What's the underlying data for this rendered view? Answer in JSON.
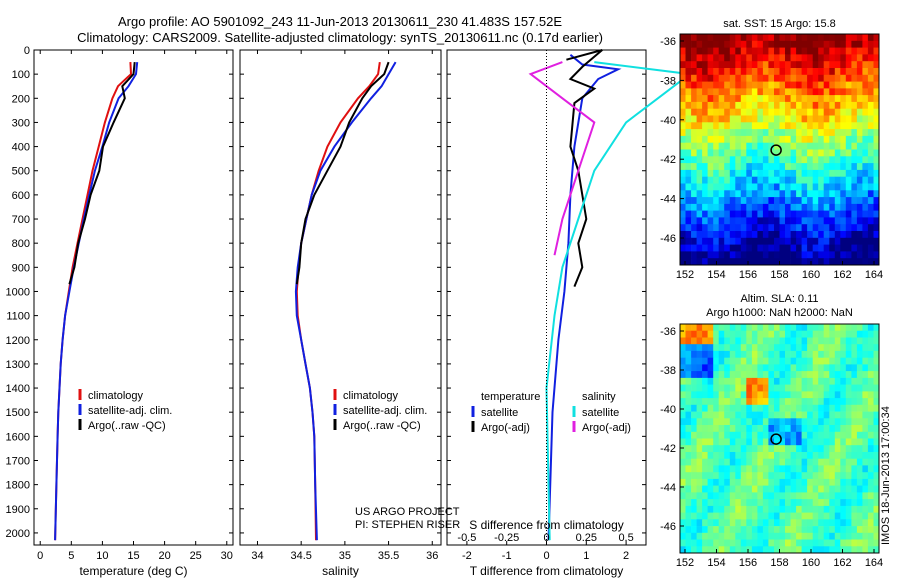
{
  "header": {
    "line1": "Argo profile: AO 5901092_243 11-Jun-2013 20130611_230 41.483S 157.52E",
    "line2": "Climatology: CARS2009. Satellite-adjusted climatology: synTS_20130611.nc (0.17d earlier)"
  },
  "colors": {
    "climatology": "#e01010",
    "satellite": "#1020e0",
    "argo": "#000000",
    "s_satellite": "#10e0e0",
    "s_argo": "#e020e0"
  },
  "chart_data": [
    {
      "type": "line",
      "name": "temperature",
      "xlabel": "temperature (deg C)",
      "ylabel": "",
      "xlim": [
        -1,
        31
      ],
      "ylim": [
        0,
        2050
      ],
      "xticks": [
        0,
        5,
        10,
        15,
        20,
        25,
        30
      ],
      "yticks": [
        0,
        100,
        200,
        300,
        400,
        500,
        600,
        700,
        800,
        900,
        1000,
        1100,
        1200,
        1300,
        1400,
        1500,
        1600,
        1700,
        1800,
        1900,
        2000
      ],
      "legend": [
        "climatology",
        "satellite-adj. clim.",
        "Argo(..raw -QC)"
      ],
      "series": [
        {
          "name": "climatology",
          "color": "#e01010",
          "points": [
            [
              14.5,
              50
            ],
            [
              14.6,
              100
            ],
            [
              12.5,
              150
            ],
            [
              11.6,
              200
            ],
            [
              10.4,
              300
            ],
            [
              9.4,
              400
            ],
            [
              8.4,
              500
            ],
            [
              7.6,
              600
            ],
            [
              6.8,
              700
            ],
            [
              6,
              800
            ],
            [
              5.2,
              900
            ],
            [
              4.6,
              1000
            ],
            [
              4,
              1100
            ],
            [
              3.6,
              1200
            ],
            [
              3.3,
              1300
            ],
            [
              3.1,
              1400
            ],
            [
              2.9,
              1500
            ],
            [
              2.8,
              1600
            ],
            [
              2.6,
              1800
            ],
            [
              2.4,
              2030
            ]
          ]
        },
        {
          "name": "satellite-adj. clim.",
          "color": "#1020e0",
          "points": [
            [
              15.6,
              50
            ],
            [
              15.4,
              100
            ],
            [
              14.2,
              150
            ],
            [
              12.6,
              200
            ],
            [
              11.1,
              300
            ],
            [
              10,
              400
            ],
            [
              8.8,
              500
            ],
            [
              7.9,
              600
            ],
            [
              7,
              700
            ],
            [
              6.2,
              800
            ],
            [
              5.4,
              900
            ],
            [
              4.7,
              1000
            ],
            [
              4,
              1100
            ],
            [
              3.6,
              1200
            ],
            [
              3.3,
              1300
            ],
            [
              3.1,
              1400
            ],
            [
              2.9,
              1500
            ],
            [
              2.8,
              1600
            ],
            [
              2.6,
              1800
            ],
            [
              2.4,
              2030
            ]
          ]
        },
        {
          "name": "Argo(..raw -QC)",
          "color": "#000000",
          "points": [
            [
              15.2,
              50
            ],
            [
              15,
              100
            ],
            [
              13.2,
              150
            ],
            [
              13.6,
              200
            ],
            [
              11.8,
              300
            ],
            [
              10.1,
              400
            ],
            [
              9.5,
              500
            ],
            [
              8.1,
              600
            ],
            [
              7.2,
              700
            ],
            [
              6.1,
              800
            ],
            [
              5.5,
              900
            ],
            [
              4.7,
              970
            ]
          ]
        }
      ]
    },
    {
      "type": "line",
      "name": "salinity",
      "xlabel": "salinity",
      "ylabel": "",
      "xlim": [
        33.8,
        36.1
      ],
      "ylim": [
        0,
        2050
      ],
      "xticks": [
        34,
        34.5,
        35,
        35.5,
        36
      ],
      "legend": [
        "climatology",
        "satellite-adj. clim.",
        "Argo(..raw -QC)"
      ],
      "series": [
        {
          "name": "climatology",
          "color": "#e01010",
          "points": [
            [
              35.4,
              50
            ],
            [
              35.38,
              100
            ],
            [
              35.28,
              150
            ],
            [
              35.15,
              200
            ],
            [
              34.95,
              300
            ],
            [
              34.8,
              400
            ],
            [
              34.7,
              500
            ],
            [
              34.62,
              600
            ],
            [
              34.56,
              700
            ],
            [
              34.5,
              800
            ],
            [
              34.47,
              900
            ],
            [
              34.45,
              1000
            ],
            [
              34.46,
              1100
            ],
            [
              34.5,
              1200
            ],
            [
              34.55,
              1300
            ],
            [
              34.6,
              1400
            ],
            [
              34.63,
              1500
            ],
            [
              34.65,
              1600
            ],
            [
              34.66,
              1800
            ],
            [
              34.67,
              2030
            ]
          ]
        },
        {
          "name": "satellite-adj. clim.",
          "color": "#1020e0",
          "points": [
            [
              35.58,
              50
            ],
            [
              35.5,
              100
            ],
            [
              35.42,
              150
            ],
            [
              35.3,
              200
            ],
            [
              35.08,
              300
            ],
            [
              34.88,
              400
            ],
            [
              34.72,
              500
            ],
            [
              34.62,
              600
            ],
            [
              34.56,
              700
            ],
            [
              34.5,
              800
            ],
            [
              34.46,
              900
            ],
            [
              34.44,
              1000
            ],
            [
              34.45,
              1100
            ],
            [
              34.5,
              1200
            ],
            [
              34.55,
              1300
            ],
            [
              34.6,
              1400
            ],
            [
              34.63,
              1500
            ],
            [
              34.65,
              1600
            ],
            [
              34.66,
              1800
            ],
            [
              34.68,
              2030
            ]
          ]
        },
        {
          "name": "Argo(..raw -QC)",
          "color": "#000000",
          "points": [
            [
              35.5,
              50
            ],
            [
              35.45,
              100
            ],
            [
              35.3,
              150
            ],
            [
              35.2,
              200
            ],
            [
              35.05,
              300
            ],
            [
              34.95,
              400
            ],
            [
              34.8,
              500
            ],
            [
              34.65,
              600
            ],
            [
              34.55,
              700
            ],
            [
              34.5,
              800
            ],
            [
              34.48,
              900
            ],
            [
              34.45,
              970
            ]
          ]
        }
      ]
    },
    {
      "type": "line",
      "name": "difference",
      "xlabel": "T difference from climatology",
      "xlabel2": "S difference from climatology",
      "xlim": [
        -2.5,
        2.5
      ],
      "ylim": [
        0,
        2050
      ],
      "xticks": [
        "-2",
        "-1",
        "0",
        "1",
        "2"
      ],
      "xticks_s": [
        "-0.5",
        "-0.25",
        "0",
        "0.25",
        "0.5"
      ],
      "legend_title_t": "temperature",
      "legend_title_s": "salinity",
      "legend": [
        "satellite",
        "Argo(-adj)",
        "satellite",
        "Argo(-adj)"
      ],
      "series": [
        {
          "name": "temperature satellite",
          "color": "#1020e0",
          "points": [
            [
              0.6,
              20
            ],
            [
              0.9,
              60
            ],
            [
              1.8,
              80
            ],
            [
              1.3,
              120
            ],
            [
              0.9,
              200
            ],
            [
              0.7,
              400
            ],
            [
              0.6,
              600
            ],
            [
              0.55,
              800
            ],
            [
              0.45,
              1000
            ],
            [
              0.3,
              1200
            ],
            [
              0.15,
              1500
            ],
            [
              0.05,
              2030
            ]
          ]
        },
        {
          "name": "temperature Argo(-adj)",
          "color": "#000000",
          "points": [
            [
              0.5,
              40
            ],
            [
              1.4,
              0
            ],
            [
              0.9,
              70
            ],
            [
              0.6,
              120
            ],
            [
              1.2,
              160
            ],
            [
              0.7,
              220
            ],
            [
              0.6,
              400
            ],
            [
              0.8,
              500
            ],
            [
              1.0,
              700
            ],
            [
              0.8,
              800
            ],
            [
              0.9,
              900
            ],
            [
              0.7,
              980
            ]
          ]
        },
        {
          "name": "salinity satellite",
          "color": "#10e0e0",
          "points": [
            [
              0.3,
              50
            ],
            [
              0.9,
              100
            ],
            [
              0.7,
              200
            ],
            [
              0.5,
              300
            ],
            [
              0.3,
              500
            ],
            [
              0.2,
              700
            ],
            [
              0.1,
              900
            ],
            [
              0.05,
              1100
            ],
            [
              0,
              1400
            ],
            [
              0.02,
              2030
            ]
          ]
        },
        {
          "name": "salinity Argo(-adj)",
          "color": "#e020e0",
          "points": [
            [
              0.1,
              50
            ],
            [
              -0.1,
              100
            ],
            [
              0.1,
              200
            ],
            [
              0.3,
              300
            ],
            [
              0.2,
              500
            ],
            [
              0.1,
              700
            ],
            [
              0.05,
              850
            ]
          ]
        }
      ]
    },
    {
      "type": "heatmap",
      "title": "sat. SST: 15 Argo: 15.8",
      "xticks": [
        "152",
        "154",
        "156",
        "158",
        "160",
        "162",
        "164"
      ],
      "yticks": [
        "-36",
        "-38",
        "-40",
        "-42",
        "-44",
        "-46"
      ],
      "marker": {
        "lon": 157.52,
        "lat": -41.483
      }
    },
    {
      "type": "heatmap",
      "title": "Altim. SLA: 0.11",
      "subtitle": "Argo h1000: NaN h2000: NaN",
      "xticks": [
        "152",
        "154",
        "156",
        "158",
        "160",
        "162",
        "164"
      ],
      "yticks": [
        "-36",
        "-38",
        "-40",
        "-42",
        "-44",
        "-46"
      ],
      "marker": {
        "lon": 157.52,
        "lat": -41.483
      }
    }
  ],
  "footer_texts": {
    "project": "US ARGO PROJECT",
    "pi": "PI: STEPHEN RISER",
    "stamp": "IMOS 18-Jun-2013 17:00:34"
  }
}
